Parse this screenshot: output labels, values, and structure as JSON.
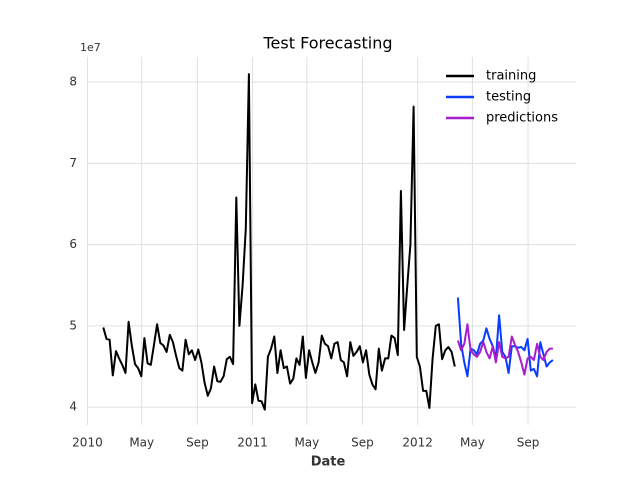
{
  "chart_data": {
    "type": "line",
    "title": "Test Forecasting",
    "x_label": "Date",
    "y_offset_label": "1e7",
    "xlim": [
      "2009-12-31",
      "2012-12-16"
    ],
    "xticks": [
      {
        "value": "2010-01-01",
        "label": "2010"
      },
      {
        "value": "2010-05-01",
        "label": "May"
      },
      {
        "value": "2010-09-01",
        "label": "Sep"
      },
      {
        "value": "2011-01-01",
        "label": "2011"
      },
      {
        "value": "2011-05-01",
        "label": "May"
      },
      {
        "value": "2011-09-01",
        "label": "Sep"
      },
      {
        "value": "2012-01-01",
        "label": "2012"
      },
      {
        "value": "2012-05-01",
        "label": "May"
      },
      {
        "value": "2012-09-01",
        "label": "Sep"
      }
    ],
    "ylim": [
      3.78,
      8.31
    ],
    "yticks": [
      4,
      5,
      6,
      7,
      8
    ],
    "grid": true,
    "legend": "upper right",
    "series": [
      {
        "name": "training",
        "color": "#000000",
        "x": [
          "2010-02-05",
          "2010-02-12",
          "2010-02-19",
          "2010-02-26",
          "2010-03-05",
          "2010-03-12",
          "2010-03-19",
          "2010-03-26",
          "2010-04-02",
          "2010-04-09",
          "2010-04-16",
          "2010-04-23",
          "2010-04-30",
          "2010-05-07",
          "2010-05-14",
          "2010-05-21",
          "2010-05-28",
          "2010-06-04",
          "2010-06-11",
          "2010-06-18",
          "2010-06-25",
          "2010-07-02",
          "2010-07-09",
          "2010-07-16",
          "2010-07-23",
          "2010-07-30",
          "2010-08-06",
          "2010-08-13",
          "2010-08-20",
          "2010-08-27",
          "2010-09-03",
          "2010-09-10",
          "2010-09-17",
          "2010-09-24",
          "2010-10-01",
          "2010-10-08",
          "2010-10-15",
          "2010-10-22",
          "2010-10-29",
          "2010-11-05",
          "2010-11-12",
          "2010-11-19",
          "2010-11-26",
          "2010-12-03",
          "2010-12-10",
          "2010-12-17",
          "2010-12-24",
          "2010-12-31",
          "2011-01-07",
          "2011-01-14",
          "2011-01-21",
          "2011-01-28",
          "2011-02-04",
          "2011-02-11",
          "2011-02-18",
          "2011-02-25",
          "2011-03-04",
          "2011-03-11",
          "2011-03-18",
          "2011-03-25",
          "2011-04-01",
          "2011-04-08",
          "2011-04-15",
          "2011-04-22",
          "2011-04-29",
          "2011-05-06",
          "2011-05-13",
          "2011-05-20",
          "2011-05-27",
          "2011-06-03",
          "2011-06-10",
          "2011-06-17",
          "2011-06-24",
          "2011-07-01",
          "2011-07-08",
          "2011-07-15",
          "2011-07-22",
          "2011-07-29",
          "2011-08-05",
          "2011-08-12",
          "2011-08-19",
          "2011-08-26",
          "2011-09-02",
          "2011-09-09",
          "2011-09-16",
          "2011-09-23",
          "2011-09-30",
          "2011-10-07",
          "2011-10-14",
          "2011-10-21",
          "2011-10-28",
          "2011-11-04",
          "2011-11-11",
          "2011-11-18",
          "2011-11-25",
          "2011-12-02",
          "2011-12-09",
          "2011-12-16",
          "2011-12-23",
          "2011-12-30",
          "2012-01-06",
          "2012-01-13",
          "2012-01-20",
          "2012-01-27",
          "2012-02-03",
          "2012-02-10",
          "2012-02-17",
          "2012-02-24",
          "2012-03-02",
          "2012-03-09",
          "2012-03-16",
          "2012-03-23"
        ],
        "values": [
          4.98,
          4.84,
          4.83,
          4.39,
          4.69,
          4.6,
          4.52,
          4.42,
          5.05,
          4.76,
          4.53,
          4.48,
          4.38,
          4.85,
          4.54,
          4.52,
          4.76,
          5.02,
          4.79,
          4.76,
          4.68,
          4.89,
          4.8,
          4.63,
          4.48,
          4.45,
          4.83,
          4.65,
          4.7,
          4.58,
          4.71,
          4.55,
          4.3,
          4.14,
          4.23,
          4.5,
          4.32,
          4.31,
          4.38,
          4.59,
          4.62,
          4.53,
          6.58,
          5.0,
          5.5,
          6.2,
          8.1,
          4.05,
          4.28,
          4.08,
          4.07,
          3.97,
          4.62,
          4.72,
          4.87,
          4.42,
          4.7,
          4.48,
          4.5,
          4.29,
          4.35,
          4.6,
          4.52,
          4.87,
          4.36,
          4.7,
          4.55,
          4.42,
          4.55,
          4.88,
          4.78,
          4.75,
          4.6,
          4.78,
          4.8,
          4.58,
          4.55,
          4.38,
          4.8,
          4.63,
          4.68,
          4.75,
          4.55,
          4.7,
          4.4,
          4.28,
          4.22,
          4.72,
          4.45,
          4.6,
          4.6,
          4.88,
          4.85,
          4.64,
          6.66,
          4.95,
          5.5,
          6.0,
          7.7,
          4.62,
          4.5,
          4.2,
          4.2,
          3.99,
          4.6,
          5.0,
          5.02,
          4.59,
          4.7,
          4.74,
          4.68,
          4.5
        ]
      },
      {
        "name": "testing",
        "color": "#0a3cff",
        "x": [
          "2012-03-30",
          "2012-04-06",
          "2012-04-13",
          "2012-04-20",
          "2012-04-27",
          "2012-05-04",
          "2012-05-11",
          "2012-05-18",
          "2012-05-25",
          "2012-06-01",
          "2012-06-08",
          "2012-06-15",
          "2012-06-22",
          "2012-06-29",
          "2012-07-06",
          "2012-07-13",
          "2012-07-20",
          "2012-07-27",
          "2012-08-03",
          "2012-08-10",
          "2012-08-17",
          "2012-08-24",
          "2012-08-31",
          "2012-09-07",
          "2012-09-14",
          "2012-09-21",
          "2012-09-28",
          "2012-10-05",
          "2012-10-12",
          "2012-10-19",
          "2012-10-26"
        ],
        "values": [
          5.35,
          4.78,
          4.55,
          4.38,
          4.72,
          4.7,
          4.65,
          4.78,
          4.82,
          4.97,
          4.84,
          4.75,
          4.6,
          5.13,
          4.68,
          4.62,
          4.42,
          4.75,
          4.75,
          4.73,
          4.74,
          4.7,
          4.84,
          4.45,
          4.47,
          4.38,
          4.8,
          4.65,
          4.5,
          4.55,
          4.58
        ]
      },
      {
        "name": "predictions",
        "color": "#a61fcc",
        "x": [
          "2012-03-30",
          "2012-04-06",
          "2012-04-13",
          "2012-04-20",
          "2012-04-27",
          "2012-05-04",
          "2012-05-11",
          "2012-05-18",
          "2012-05-25",
          "2012-06-01",
          "2012-06-08",
          "2012-06-15",
          "2012-06-22",
          "2012-06-29",
          "2012-07-06",
          "2012-07-13",
          "2012-07-20",
          "2012-07-27",
          "2012-08-03",
          "2012-08-10",
          "2012-08-17",
          "2012-08-24",
          "2012-08-31",
          "2012-09-07",
          "2012-09-14",
          "2012-09-21",
          "2012-09-28",
          "2012-10-05",
          "2012-10-12",
          "2012-10-19",
          "2012-10-26"
        ],
        "values": [
          4.82,
          4.7,
          4.78,
          5.02,
          4.7,
          4.65,
          4.62,
          4.68,
          4.8,
          4.68,
          4.6,
          4.75,
          4.55,
          4.8,
          4.62,
          4.6,
          4.62,
          4.87,
          4.77,
          4.68,
          4.55,
          4.4,
          4.6,
          4.62,
          4.58,
          4.78,
          4.62,
          4.58,
          4.68,
          4.72,
          4.72
        ]
      }
    ]
  }
}
